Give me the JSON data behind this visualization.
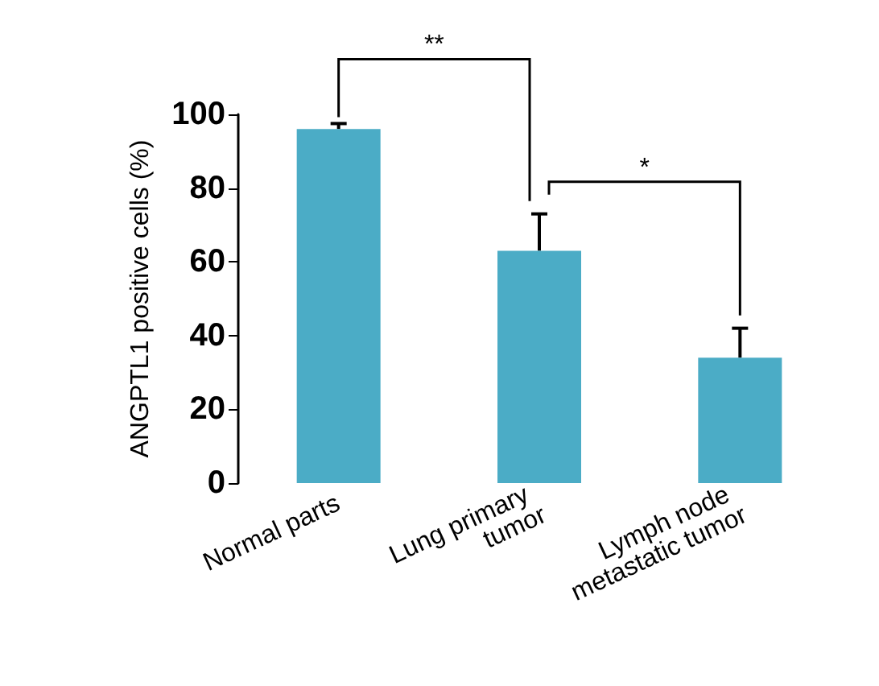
{
  "chart_data": {
    "type": "bar",
    "ylabel": "ANGPTL1 positive cells (%)",
    "categories": [
      "Normal parts",
      "Lung primary tumor",
      "Lymph node metastatic tumor"
    ],
    "values": [
      96,
      63,
      34
    ],
    "errors": [
      [
        96,
        97.5
      ],
      [
        63,
        73
      ],
      [
        34,
        42
      ]
    ],
    "color": "#4bacc6",
    "ylim": [
      0,
      100
    ],
    "yticks": [
      0,
      20,
      40,
      60,
      80,
      100
    ],
    "grid": false,
    "annotations": [
      "**",
      "*"
    ]
  }
}
